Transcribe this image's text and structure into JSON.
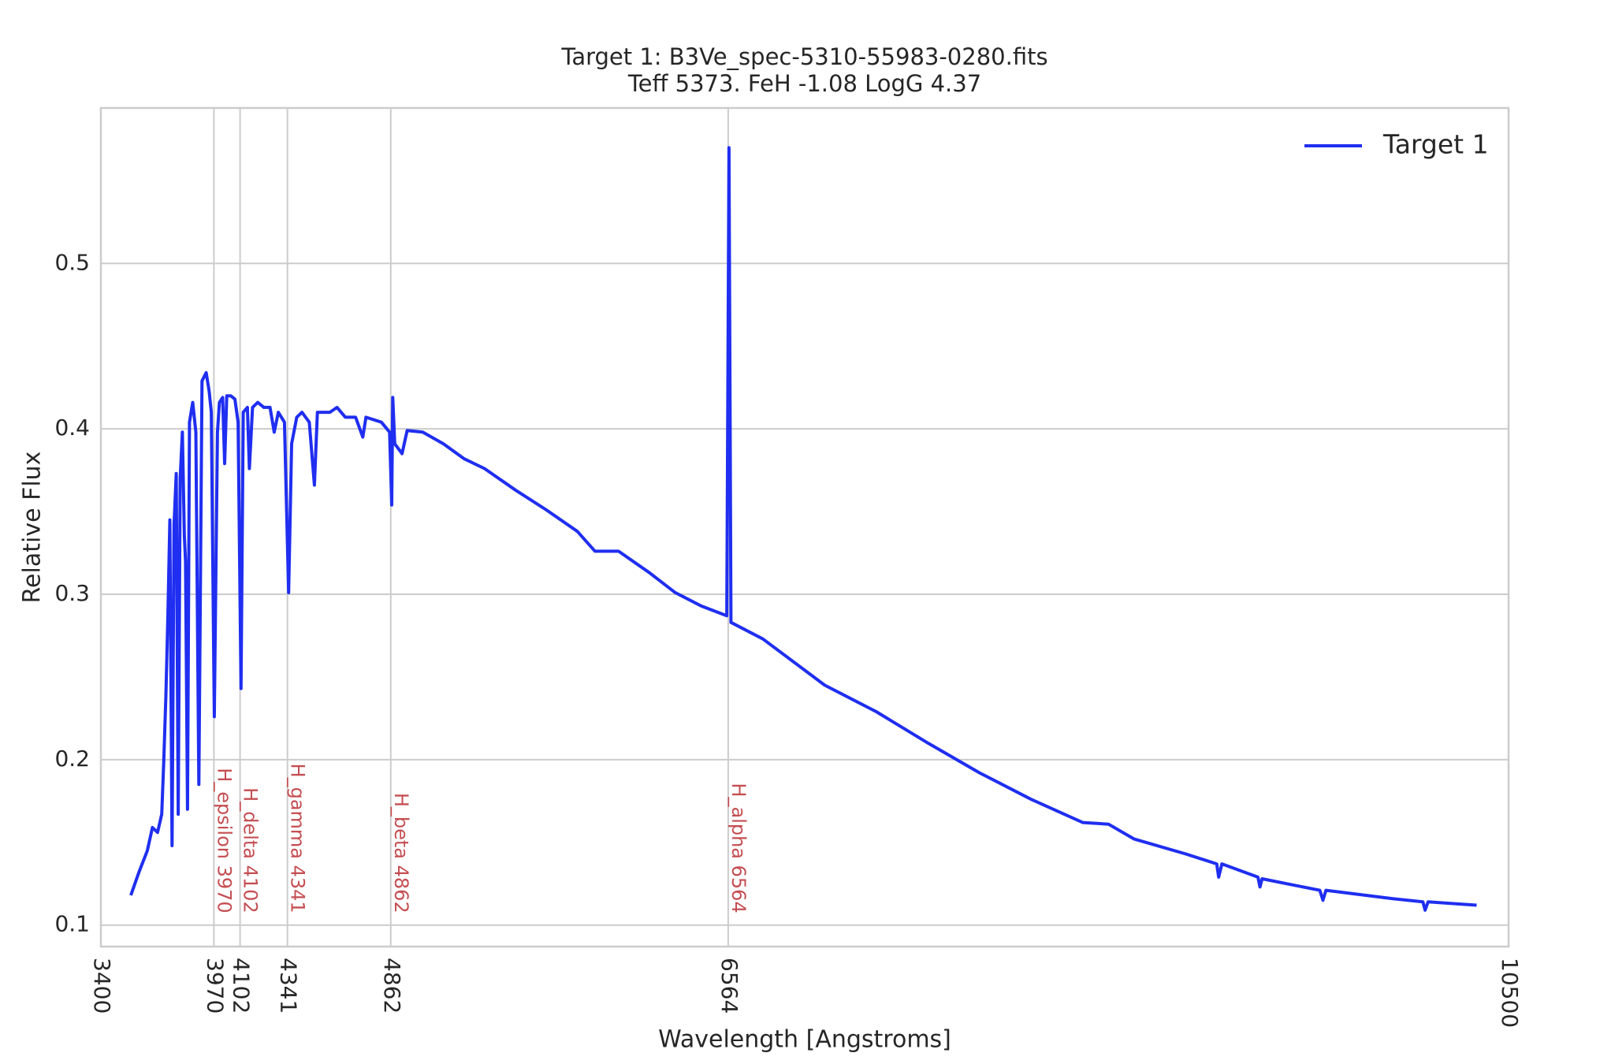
{
  "chart_data": {
    "type": "line",
    "title": "Target 1: B3Ve_spec-5310-55983-0280.fits",
    "subtitle": "Teff 5373. FeH -1.08 LogG 4.37",
    "x_label": "Wavelength [Angstroms]",
    "y_label": "Relative Flux",
    "xlim": [
      3400,
      10500
    ],
    "ylim": [
      0.087,
      0.594
    ],
    "xticks": [
      3400,
      3970,
      4102,
      4341,
      4862,
      6564,
      10500
    ],
    "yticks": [
      0.1,
      0.2,
      0.3,
      0.4,
      0.5
    ],
    "grid": true,
    "legend": "upper right",
    "annotations": [
      {
        "x": 3970,
        "label": "H_epsilon 3970"
      },
      {
        "x": 4102,
        "label": "H_delta 4102"
      },
      {
        "x": 4341,
        "label": "H_gamma 4341"
      },
      {
        "x": 4862,
        "label": "H_beta 4862"
      },
      {
        "x": 6564,
        "label": "H_alpha 6564"
      }
    ],
    "annotation_color": "#c44e52",
    "x": [
      3551,
      3592,
      3634,
      3660,
      3686,
      3707,
      3717,
      3728,
      3738,
      3748,
      3759,
      3769,
      3780,
      3790,
      3800,
      3811,
      3821,
      3827,
      3837,
      3847,
      3863,
      3879,
      3894,
      3910,
      3931,
      3946,
      3957,
      3972,
      3988,
      3998,
      4014,
      4024,
      4035,
      4055,
      4076,
      4092,
      4107,
      4118,
      4139,
      4149,
      4165,
      4191,
      4222,
      4253,
      4274,
      4295,
      4326,
      4347,
      4362,
      4388,
      4414,
      4451,
      4477,
      4492,
      4555,
      4591,
      4633,
      4685,
      4721,
      4737,
      4815,
      4856,
      4867,
      4872,
      4882,
      4919,
      4945,
      5023,
      5127,
      5231,
      5335,
      5491,
      5647,
      5803,
      5892,
      6011,
      6167,
      6297,
      6427,
      6557,
      6568,
      6578,
      6739,
      7051,
      7311,
      7572,
      7832,
      8092,
      8352,
      8482,
      8612,
      8872,
      9028,
      9038,
      9054,
      9236,
      9246,
      9257,
      9548,
      9564,
      9579,
      9912,
      10068,
      10079,
      10094,
      10339
    ],
    "series": [
      {
        "name": "Target 1",
        "color": "#1f2ef0",
        "values": [
          0.118,
          0.132,
          0.145,
          0.159,
          0.156,
          0.167,
          0.198,
          0.239,
          0.287,
          0.345,
          0.148,
          0.342,
          0.373,
          0.167,
          0.37,
          0.398,
          0.335,
          0.32,
          0.17,
          0.404,
          0.416,
          0.398,
          0.185,
          0.429,
          0.434,
          0.423,
          0.41,
          0.226,
          0.398,
          0.416,
          0.419,
          0.379,
          0.42,
          0.42,
          0.418,
          0.404,
          0.243,
          0.41,
          0.413,
          0.376,
          0.413,
          0.416,
          0.413,
          0.413,
          0.398,
          0.41,
          0.404,
          0.301,
          0.391,
          0.407,
          0.41,
          0.404,
          0.366,
          0.41,
          0.41,
          0.413,
          0.407,
          0.407,
          0.395,
          0.407,
          0.404,
          0.398,
          0.354,
          0.419,
          0.391,
          0.385,
          0.399,
          0.398,
          0.391,
          0.382,
          0.376,
          0.363,
          0.351,
          0.338,
          0.326,
          0.326,
          0.313,
          0.301,
          0.293,
          0.287,
          0.57,
          0.283,
          0.273,
          0.245,
          0.229,
          0.21,
          0.192,
          0.176,
          0.162,
          0.161,
          0.152,
          0.143,
          0.137,
          0.129,
          0.137,
          0.129,
          0.123,
          0.128,
          0.121,
          0.115,
          0.121,
          0.116,
          0.114,
          0.109,
          0.114,
          0.112
        ]
      }
    ]
  }
}
